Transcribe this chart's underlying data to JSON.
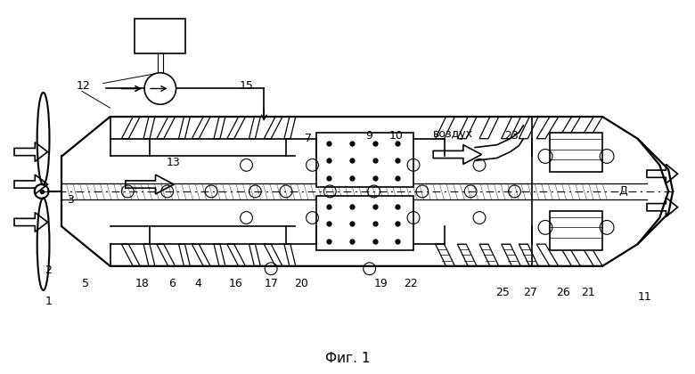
{
  "title": "Фиг. 1",
  "bg_color": "#ffffff",
  "line_color": "#000000",
  "figsize": [
    7.8,
    4.2
  ],
  "dpi": 100
}
